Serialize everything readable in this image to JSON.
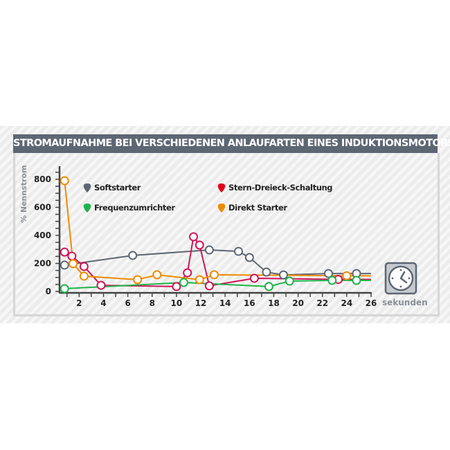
{
  "chart_data": {
    "type": "line",
    "title": "STROMAUFNAHME BEI VERSCHIEDENEN ANLAUFARTEN EINES INDUKTIONSMOTORS",
    "ylabel": "% Nennstrom",
    "xlabel": "sekunden",
    "xlim": [
      0.5,
      26
    ],
    "ylim": [
      0,
      850
    ],
    "xticks": [
      2,
      4,
      6,
      8,
      10,
      12,
      14,
      16,
      18,
      20,
      22,
      24,
      26
    ],
    "yticks": [
      0,
      200,
      400,
      600,
      800
    ],
    "grid": false,
    "legend_placement": "top",
    "series": [
      {
        "name": "Softstarter",
        "color": "#5d6673",
        "line_end": [
          26,
          128
        ],
        "points": [
          [
            0.8,
            188
          ],
          [
            6.4,
            257
          ],
          [
            12.7,
            296
          ],
          [
            15.1,
            286
          ],
          [
            16.0,
            242
          ],
          [
            17.4,
            138
          ],
          [
            18.8,
            118
          ],
          [
            22.5,
            128
          ],
          [
            24.8,
            128
          ]
        ]
      },
      {
        "name": "Stern-Dreieck-Schaltung",
        "color": "#d0145a",
        "marker_color": "#e2001a",
        "line_end": [
          26,
          86
        ],
        "points": [
          [
            0.8,
            281
          ],
          [
            1.4,
            252
          ],
          [
            2.4,
            178
          ],
          [
            3.8,
            44
          ],
          [
            10.0,
            35
          ],
          [
            10.9,
            133
          ],
          [
            11.4,
            390
          ],
          [
            11.9,
            331
          ],
          [
            12.7,
            40
          ],
          [
            16.4,
            94
          ],
          [
            23.3,
            86
          ]
        ]
      },
      {
        "name": "Frequenzumrichter",
        "color": "#1db34a",
        "line_end": [
          26,
          79
        ],
        "points": [
          [
            0.8,
            20
          ],
          [
            10.6,
            64
          ],
          [
            17.6,
            35
          ],
          [
            19.3,
            74
          ],
          [
            22.8,
            79
          ],
          [
            24.8,
            79
          ]
        ]
      },
      {
        "name": "Direkt Starter",
        "color": "#f08a00",
        "line_end": [
          26,
          112
        ],
        "points": [
          [
            0.8,
            790
          ],
          [
            1.5,
            198
          ],
          [
            2.4,
            109
          ],
          [
            6.8,
            84
          ],
          [
            8.4,
            119
          ],
          [
            11.9,
            84
          ],
          [
            13.1,
            119
          ],
          [
            24.0,
            112
          ]
        ]
      }
    ]
  },
  "icons": {
    "time": "clock-icon"
  }
}
